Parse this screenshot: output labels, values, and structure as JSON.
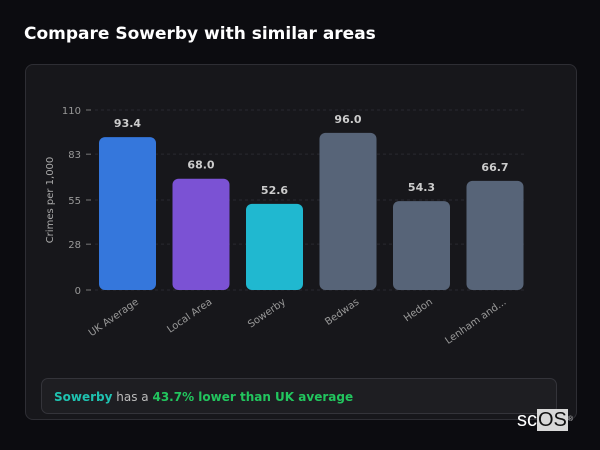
{
  "header": {
    "title": "Compare Sowerby with similar areas"
  },
  "chart_data": {
    "type": "bar",
    "categories": [
      "UK Average",
      "Local Area",
      "Sowerby",
      "Bedwas",
      "Hedon",
      "Lenham and..."
    ],
    "values": [
      93.4,
      68.0,
      52.6,
      96.0,
      54.3,
      66.7
    ],
    "value_labels": [
      "93.4",
      "68.0",
      "52.6",
      "96.0",
      "54.3",
      "66.7"
    ],
    "colors": [
      "#3577dc",
      "#7b52d4",
      "#20b8d0",
      "#576478",
      "#576478",
      "#576478"
    ],
    "ylabel": "Crimes per 1,000",
    "ylim": [
      0,
      110
    ],
    "yticks": [
      0,
      28,
      55,
      83,
      110
    ],
    "ytick_labels": [
      "0",
      "28",
      "55",
      "83",
      "110"
    ],
    "grid": true
  },
  "summary": {
    "area": "Sowerby",
    "middle": " has a ",
    "result": "43.7% lower than UK average"
  },
  "logo": {
    "text_a": "sc",
    "text_b": "OS",
    "mark": "®"
  }
}
